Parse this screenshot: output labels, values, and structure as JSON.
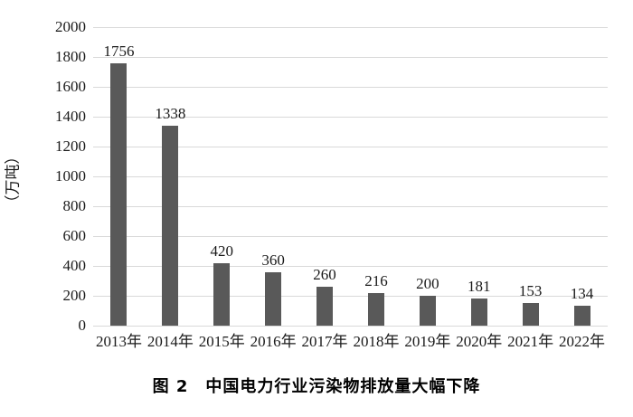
{
  "chart_data": {
    "type": "bar",
    "categories": [
      "2013年",
      "2014年",
      "2015年",
      "2016年",
      "2017年",
      "2018年",
      "2019年",
      "2020年",
      "2021年",
      "2022年"
    ],
    "values": [
      1756,
      1338,
      420,
      360,
      260,
      216,
      200,
      181,
      153,
      134
    ],
    "title": "图 2　中国电力行业污染物排放量大幅下降",
    "xlabel": "",
    "ylabel": "（万吨）",
    "ylim": [
      0,
      2000
    ],
    "ytick_interval": 200,
    "grid": "horizontal",
    "legend": "none",
    "bar_color": "#595959",
    "gridline_color": "#d9d9d9"
  }
}
